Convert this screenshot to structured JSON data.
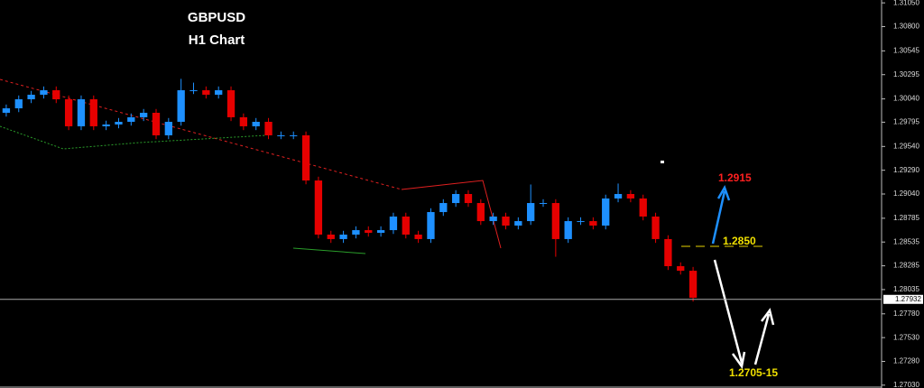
{
  "chart_data": {
    "type": "candlestick",
    "title": "GBPUSD",
    "subtitle": "H1 Chart",
    "up_color": "#1e90ff",
    "down_color": "#e60000",
    "ylim": [
      1.27,
      1.3108
    ],
    "yticks": [
      {
        "value": 1.3105,
        "label": "1.31050"
      },
      {
        "value": 1.308,
        "label": "1.30800"
      },
      {
        "value": 1.30545,
        "label": "1.30545"
      },
      {
        "value": 1.30295,
        "label": "1.30295"
      },
      {
        "value": 1.3004,
        "label": "1.30040"
      },
      {
        "value": 1.29795,
        "label": "1.29795"
      },
      {
        "value": 1.2954,
        "label": "1.29540"
      },
      {
        "value": 1.2929,
        "label": "1.29290"
      },
      {
        "value": 1.2904,
        "label": "1.29040"
      },
      {
        "value": 1.28785,
        "label": "1.28785"
      },
      {
        "value": 1.28535,
        "label": "1.28535"
      },
      {
        "value": 1.28285,
        "label": "1.28285"
      },
      {
        "value": 1.28035,
        "label": "1.28035"
      },
      {
        "value": 1.2778,
        "label": "1.27780"
      },
      {
        "value": 1.2753,
        "label": "1.27530"
      },
      {
        "value": 1.2728,
        "label": "1.27280"
      },
      {
        "value": 1.2703,
        "label": "1.27030"
      }
    ],
    "current_price": 1.27932,
    "annotations": {
      "target_up": "1.2915",
      "pivot": "1.2850",
      "target_down": "1.2705-15"
    },
    "ohlc": [
      [
        1.29894,
        1.29981,
        1.29854,
        1.29941
      ],
      [
        1.29941,
        1.30076,
        1.29901,
        1.30036
      ],
      [
        1.30036,
        1.30124,
        1.29996,
        1.30084
      ],
      [
        1.30084,
        1.30171,
        1.30044,
        1.30131
      ],
      [
        1.30131,
        1.30171,
        1.29996,
        1.30036
      ],
      [
        1.30036,
        1.30076,
        1.29712,
        1.29752
      ],
      [
        1.29752,
        1.30076,
        1.29712,
        1.30036
      ],
      [
        1.30036,
        1.30076,
        1.29712,
        1.29752
      ],
      [
        1.29752,
        1.29811,
        1.29712,
        1.29771
      ],
      [
        1.29771,
        1.29839,
        1.29731,
        1.29799
      ],
      [
        1.29799,
        1.29887,
        1.29759,
        1.29847
      ],
      [
        1.29847,
        1.29934,
        1.29807,
        1.29894
      ],
      [
        1.29894,
        1.29934,
        1.29617,
        1.29657
      ],
      [
        1.29657,
        1.29839,
        1.29617,
        1.29799
      ],
      [
        1.29799,
        1.30251,
        1.29759,
        1.30131
      ],
      [
        1.30131,
        1.30211,
        1.30091,
        1.30131
      ],
      [
        1.30131,
        1.30171,
        1.30044,
        1.30084
      ],
      [
        1.30084,
        1.30171,
        1.30044,
        1.30131
      ],
      [
        1.30131,
        1.30171,
        1.29807,
        1.29847
      ],
      [
        1.29847,
        1.29887,
        1.29712,
        1.29752
      ],
      [
        1.29752,
        1.29839,
        1.29712,
        1.29799
      ],
      [
        1.29799,
        1.29839,
        1.29617,
        1.29657
      ],
      [
        1.29657,
        1.29697,
        1.29617,
        1.29657
      ],
      [
        1.29657,
        1.29697,
        1.29617,
        1.29657
      ],
      [
        1.29657,
        1.29697,
        1.29142,
        1.29182
      ],
      [
        1.29182,
        1.29222,
        1.28573,
        1.28613
      ],
      [
        1.28613,
        1.28653,
        1.28526,
        1.28566
      ],
      [
        1.28566,
        1.28653,
        1.28526,
        1.28613
      ],
      [
        1.28613,
        1.287,
        1.28573,
        1.2866
      ],
      [
        1.2866,
        1.287,
        1.28592,
        1.28632
      ],
      [
        1.28632,
        1.287,
        1.28592,
        1.2866
      ],
      [
        1.2866,
        1.28843,
        1.2862,
        1.28803
      ],
      [
        1.28803,
        1.28843,
        1.28573,
        1.28613
      ],
      [
        1.28613,
        1.28653,
        1.28526,
        1.28566
      ],
      [
        1.28566,
        1.2889,
        1.28526,
        1.2885
      ],
      [
        1.2885,
        1.28985,
        1.2881,
        1.28945
      ],
      [
        1.28945,
        1.2908,
        1.28905,
        1.2904
      ],
      [
        1.2904,
        1.2908,
        1.28905,
        1.28945
      ],
      [
        1.28945,
        1.28985,
        1.28715,
        1.28755
      ],
      [
        1.28755,
        1.28843,
        1.28715,
        1.28803
      ],
      [
        1.28803,
        1.28843,
        1.28668,
        1.28708
      ],
      [
        1.28708,
        1.28795,
        1.28668,
        1.28755
      ],
      [
        1.28755,
        1.2914,
        1.28715,
        1.28945
      ],
      [
        1.28945,
        1.28985,
        1.28905,
        1.28945
      ],
      [
        1.28945,
        1.28985,
        1.2838,
        1.28566
      ],
      [
        1.28566,
        1.28795,
        1.28526,
        1.28755
      ],
      [
        1.28755,
        1.28795,
        1.28715,
        1.28755
      ],
      [
        1.28755,
        1.28795,
        1.28668,
        1.28708
      ],
      [
        1.28708,
        1.29033,
        1.28668,
        1.28993
      ],
      [
        1.28993,
        1.2915,
        1.28953,
        1.2904
      ],
      [
        1.2904,
        1.2908,
        1.28953,
        1.28993
      ],
      [
        1.28993,
        1.29033,
        1.28763,
        1.28803
      ],
      [
        1.28803,
        1.28843,
        1.28526,
        1.28566
      ],
      [
        1.28566,
        1.28606,
        1.28241,
        1.28281
      ],
      [
        1.28281,
        1.28321,
        1.28193,
        1.28233
      ],
      [
        1.28233,
        1.28273,
        1.27909,
        1.27949
      ]
    ]
  }
}
